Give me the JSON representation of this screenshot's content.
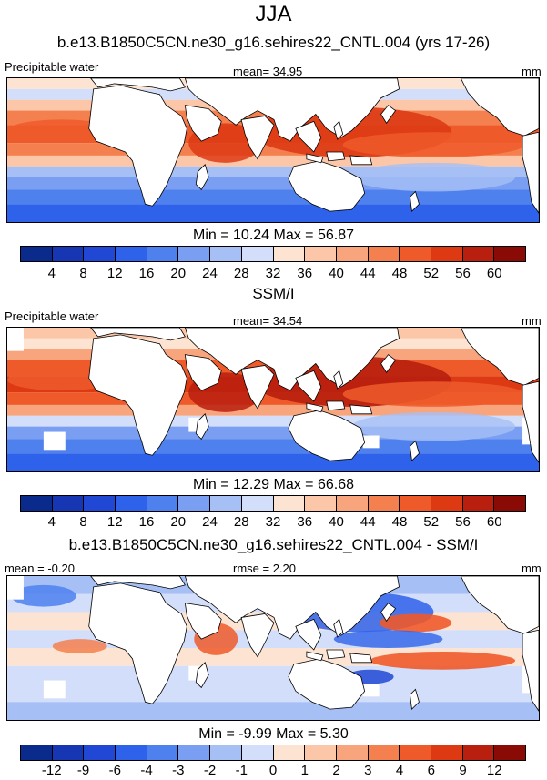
{
  "title": "JJA",
  "palettes": {
    "absolute": [
      "#0a2a8c",
      "#1636b4",
      "#2148d4",
      "#2f62ea",
      "#4e80ee",
      "#7a9ef2",
      "#a6bff5",
      "#d2defa",
      "#fde4d2",
      "#fbc7a8",
      "#f8a47c",
      "#f4804f",
      "#ee5a2a",
      "#dd3a14",
      "#b81f0e",
      "#8a0b06"
    ],
    "difference": [
      "#0a2a8c",
      "#1636b4",
      "#2148d4",
      "#2f62ea",
      "#4e80ee",
      "#7a9ef2",
      "#a6bff5",
      "#d2defa",
      "#fde4d2",
      "#fbc7a8",
      "#f8a47c",
      "#f4804f",
      "#ee5a2a",
      "#dd3a14",
      "#b81f0e",
      "#8a0b06"
    ],
    "land": "#ffffff",
    "coast": "#000000"
  },
  "panels": [
    {
      "title": "b.e13.B1850C5CN.ne30_g16.sehires22_CNTL.004 (yrs 17-26)",
      "left_label": "Precipitable water",
      "center_label": "mean=  34.95",
      "right_label": "mm",
      "min_max": "Min =  10.24 Max =  56.87",
      "ticks": [
        "4",
        "8",
        "12",
        "16",
        "20",
        "24",
        "28",
        "32",
        "36",
        "40",
        "44",
        "48",
        "52",
        "56",
        "60"
      ],
      "kind": "model"
    },
    {
      "title": "SSM/I",
      "left_label": "Precipitable water",
      "center_label": "mean=  34.54",
      "right_label": "mm",
      "min_max": "Min =  12.29 Max =  66.68",
      "ticks": [
        "4",
        "8",
        "12",
        "16",
        "20",
        "24",
        "28",
        "32",
        "36",
        "40",
        "44",
        "48",
        "52",
        "56",
        "60"
      ],
      "kind": "obs"
    },
    {
      "title": "b.e13.B1850C5CN.ne30_g16.sehires22_CNTL.004 - SSM/I",
      "left_label": "mean =  -0.20",
      "center_label": "rmse =  2.20",
      "right_label": "mm",
      "min_max": "Min =  -9.99 Max =   5.30",
      "ticks": [
        "-12",
        "-9",
        "-6",
        "-4",
        "-3",
        "-2",
        "-1",
        "0",
        "1",
        "2",
        "3",
        "4",
        "6",
        "9",
        "12"
      ],
      "kind": "diff"
    }
  ]
}
